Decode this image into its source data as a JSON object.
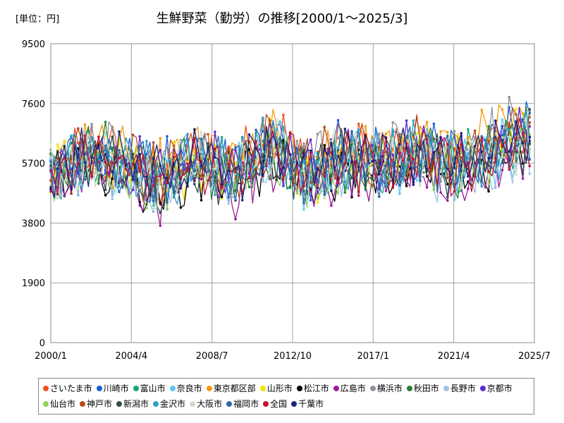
{
  "header": {
    "unit_label": "[単位：円]",
    "title": "生鮮野菜（勤労）の推移[2000/1～2025/3]"
  },
  "chart_data": {
    "type": "line",
    "title": "生鮮野菜（勤労）の推移[2000/1～2025/3]",
    "unit": "[単位：円]",
    "xlabel": "",
    "ylabel": "",
    "ylim": [
      0,
      9500
    ],
    "yticks": [
      "0",
      "1900",
      "3800",
      "5700",
      "7600",
      "9500"
    ],
    "xticks": [
      "2000/1",
      "2004/4",
      "2008/7",
      "2012/10",
      "2017/1",
      "2021/4",
      "2025/7"
    ],
    "grid": true,
    "legend_position": "bottom",
    "series_values_note": "",
    "series": [
      {
        "name": "さいたま市",
        "color": "#f4511e",
        "values": [
          5400,
          6100,
          5800,
          5300,
          6000,
          5500,
          6700,
          5600,
          6200,
          5900,
          6400,
          5700,
          6300,
          6800
        ]
      },
      {
        "name": "川崎市",
        "color": "#1a5fd6",
        "values": [
          5500,
          6000,
          5700,
          5400,
          5900,
          5600,
          6500,
          5500,
          6100,
          5800,
          6200,
          5800,
          6400,
          6900
        ]
      },
      {
        "name": "富山市",
        "color": "#1aa37a",
        "values": [
          5300,
          5900,
          5600,
          5200,
          5800,
          5400,
          6300,
          5300,
          5900,
          5700,
          6100,
          5600,
          6100,
          6500
        ]
      },
      {
        "name": "奈良市",
        "color": "#5ec5f0",
        "values": [
          5200,
          5800,
          5500,
          5100,
          5700,
          5300,
          6200,
          5200,
          5800,
          5600,
          6000,
          5400,
          5900,
          6400
        ]
      },
      {
        "name": "東京都区部",
        "color": "#f39c12",
        "values": [
          5500,
          6100,
          5900,
          5500,
          6100,
          5700,
          6600,
          5600,
          6200,
          6000,
          6500,
          5900,
          6600,
          7100
        ]
      },
      {
        "name": "山形市",
        "color": "#f5e20a",
        "values": [
          5600,
          6200,
          5800,
          5200,
          5800,
          5400,
          6400,
          5400,
          6000,
          5700,
          6300,
          5700,
          6200,
          6800
        ]
      },
      {
        "name": "松江市",
        "color": "#000000",
        "values": [
          5000,
          5600,
          5300,
          4900,
          5400,
          5000,
          5900,
          5000,
          5500,
          5300,
          5700,
          5300,
          5700,
          6100
        ]
      },
      {
        "name": "広島市",
        "color": "#9c1c9c",
        "values": [
          4900,
          5600,
          5300,
          4800,
          5400,
          4900,
          5800,
          4900,
          5400,
          5200,
          5600,
          5100,
          5500,
          6000
        ]
      },
      {
        "name": "横浜市",
        "color": "#8a949c",
        "values": [
          5500,
          6100,
          5900,
          5400,
          6100,
          5600,
          6700,
          5600,
          6300,
          6000,
          6400,
          5900,
          6600,
          7000
        ]
      },
      {
        "name": "秋田市",
        "color": "#2e7d32",
        "values": [
          5400,
          6200,
          5800,
          5100,
          5700,
          5200,
          6200,
          5200,
          5800,
          5600,
          6100,
          5500,
          6000,
          6600
        ]
      },
      {
        "name": "長野市",
        "color": "#a4bfe8",
        "values": [
          5100,
          5700,
          5400,
          5000,
          5600,
          5100,
          6000,
          5100,
          5700,
          5400,
          5800,
          5300,
          5800,
          6200
        ]
      },
      {
        "name": "京都市",
        "color": "#5b2bd6",
        "values": [
          5300,
          6000,
          5700,
          5200,
          5800,
          5400,
          6300,
          5400,
          5900,
          5700,
          6200,
          5600,
          6100,
          6600
        ]
      },
      {
        "name": "仙台市",
        "color": "#8fd45a",
        "values": [
          5200,
          5900,
          5600,
          5000,
          5600,
          5200,
          6100,
          5200,
          5800,
          5500,
          6000,
          5400,
          5900,
          6400
        ]
      },
      {
        "name": "神戸市",
        "color": "#b84a1a",
        "values": [
          5500,
          6100,
          5800,
          5300,
          5900,
          5500,
          6500,
          5500,
          6100,
          5800,
          6300,
          5700,
          6300,
          6800
        ]
      },
      {
        "name": "新潟市",
        "color": "#2f4f4f",
        "values": [
          5300,
          5900,
          5600,
          5000,
          5600,
          5200,
          6100,
          5200,
          5800,
          5500,
          6000,
          5400,
          5900,
          6400
        ]
      },
      {
        "name": "金沢市",
        "color": "#2ea0c8",
        "values": [
          5400,
          6000,
          5700,
          5200,
          5800,
          5400,
          6300,
          5300,
          5900,
          5700,
          6100,
          5600,
          6100,
          6600
        ]
      },
      {
        "name": "大阪市",
        "color": "#cfe0c8",
        "values": [
          5300,
          5900,
          5600,
          5100,
          5700,
          5300,
          6200,
          5300,
          5900,
          5600,
          6000,
          5500,
          6000,
          6500
        ]
      },
      {
        "name": "福岡市",
        "color": "#2868b0",
        "values": [
          5300,
          5900,
          5600,
          5100,
          5700,
          5300,
          6200,
          5300,
          5900,
          5600,
          6000,
          5500,
          6000,
          6500
        ]
      },
      {
        "name": "全国",
        "color": "#c8102e",
        "values": [
          5300,
          5900,
          5600,
          5100,
          5700,
          5300,
          6200,
          5300,
          5800,
          5600,
          6000,
          5500,
          6000,
          6500
        ]
      },
      {
        "name": "千葉市",
        "color": "#1a237e",
        "values": [
          5400,
          6000,
          5700,
          5200,
          5800,
          5400,
          6300,
          5400,
          6000,
          5700,
          6100,
          5600,
          6200,
          6700
        ]
      }
    ]
  }
}
